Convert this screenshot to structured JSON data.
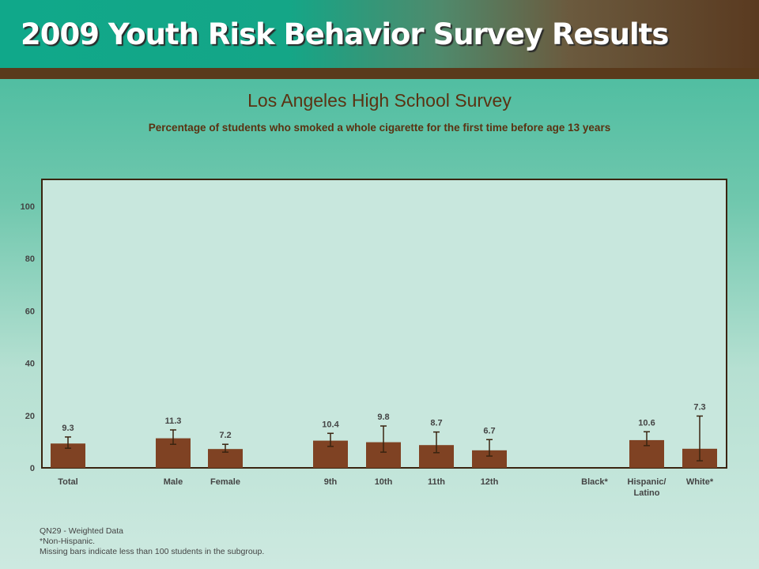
{
  "header": {
    "title": "2009 Youth Risk Behavior Survey Results"
  },
  "chart_data": {
    "type": "bar",
    "title": "Los Angeles High School Survey",
    "subtitle": "Percentage of students who smoked a whole cigarette for the first time before age 13 years",
    "ylim": [
      0,
      110
    ],
    "yticks": [
      0,
      20,
      40,
      60,
      80,
      100
    ],
    "categories": [
      "Total",
      "Male",
      "Female",
      "9th",
      "10th",
      "11th",
      "12th",
      "Black*",
      "Hispanic/ Latino",
      "White*"
    ],
    "values": [
      9.3,
      11.3,
      7.2,
      10.4,
      9.8,
      8.7,
      6.7,
      null,
      10.6,
      7.3
    ],
    "ci_low": [
      7.5,
      9.0,
      6.0,
      8.2,
      6.0,
      5.8,
      4.5,
      null,
      8.5,
      2.7
    ],
    "ci_high": [
      11.8,
      14.5,
      9.0,
      13.2,
      16.0,
      13.7,
      10.8,
      null,
      13.8,
      19.8
    ],
    "value_labels": [
      "9.3",
      "11.3",
      "7.2",
      "10.4",
      "9.8",
      "8.7",
      "6.7",
      "",
      "10.6",
      "7.3"
    ],
    "colors": {
      "bar": "#7f4223",
      "axis": "#3a2410",
      "text": "#444444",
      "plot_bg": "#c8e7dd"
    }
  },
  "footnotes": [
    "QN29 - Weighted Data",
    "*Non-Hispanic.",
    "Missing bars indicate less than 100 students in the subgroup."
  ]
}
